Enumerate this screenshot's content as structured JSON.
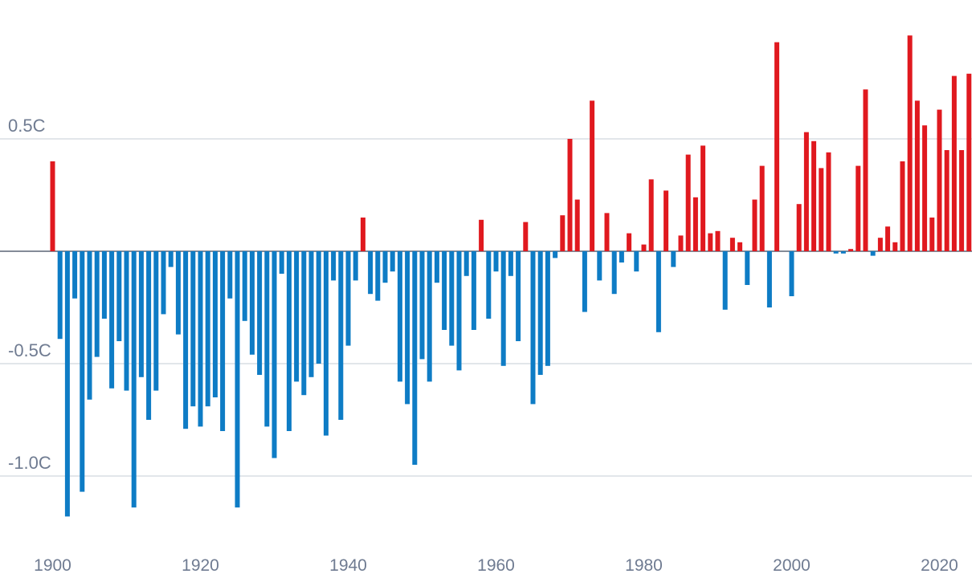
{
  "chart_data": {
    "type": "bar",
    "title": "",
    "xlabel": "",
    "ylabel": "",
    "x_range": [
      1900,
      2024
    ],
    "ylim": [
      -1.2,
      0.95
    ],
    "y_ticks": [
      {
        "value": 0.5,
        "label": "0.5C"
      },
      {
        "value": -0.5,
        "label": "-0.5C"
      },
      {
        "value": -1.0,
        "label": "-1.0C"
      }
    ],
    "x_ticks": [
      {
        "value": 1900,
        "label": "1900"
      },
      {
        "value": 1920,
        "label": "1920"
      },
      {
        "value": 1940,
        "label": "1940"
      },
      {
        "value": 1960,
        "label": "1960"
      },
      {
        "value": 1980,
        "label": "1980"
      },
      {
        "value": 2000,
        "label": "2000"
      },
      {
        "value": 2020,
        "label": "2020"
      }
    ],
    "colors": {
      "positive": "#e0191f",
      "negative": "#0e7cc5",
      "grid": "#d9dde3",
      "zero_line": "#5b6577",
      "tick_text": "#6f7b91"
    },
    "years": [
      1900,
      1901,
      1902,
      1903,
      1904,
      1905,
      1906,
      1907,
      1908,
      1909,
      1910,
      1911,
      1912,
      1913,
      1914,
      1915,
      1916,
      1917,
      1918,
      1919,
      1920,
      1921,
      1922,
      1923,
      1924,
      1925,
      1926,
      1927,
      1928,
      1929,
      1930,
      1931,
      1932,
      1933,
      1934,
      1935,
      1936,
      1937,
      1938,
      1939,
      1940,
      1941,
      1942,
      1943,
      1944,
      1945,
      1946,
      1947,
      1948,
      1949,
      1950,
      1951,
      1952,
      1953,
      1954,
      1955,
      1956,
      1957,
      1958,
      1959,
      1960,
      1961,
      1962,
      1963,
      1964,
      1965,
      1966,
      1967,
      1968,
      1969,
      1970,
      1971,
      1972,
      1973,
      1974,
      1975,
      1976,
      1977,
      1978,
      1979,
      1980,
      1981,
      1982,
      1983,
      1984,
      1985,
      1986,
      1987,
      1988,
      1989,
      1990,
      1991,
      1992,
      1993,
      1994,
      1995,
      1996,
      1997,
      1998,
      1999,
      2000,
      2001,
      2002,
      2003,
      2004,
      2005,
      2006,
      2007,
      2008,
      2009,
      2010,
      2011,
      2012,
      2013,
      2014,
      2015,
      2016,
      2017,
      2018,
      2019,
      2020,
      2021,
      2022,
      2023,
      2024
    ],
    "values": [
      0.4,
      -0.39,
      -1.18,
      -0.21,
      -1.07,
      -0.66,
      -0.47,
      -0.3,
      -0.61,
      -0.4,
      -0.62,
      -1.14,
      -0.56,
      -0.75,
      -0.62,
      -0.28,
      -0.07,
      -0.37,
      -0.79,
      -0.69,
      -0.78,
      -0.69,
      -0.65,
      -0.8,
      -0.21,
      -1.14,
      -0.31,
      -0.46,
      -0.55,
      -0.78,
      -0.92,
      -0.1,
      -0.8,
      -0.58,
      -0.64,
      -0.56,
      -0.5,
      -0.82,
      -0.13,
      -0.75,
      -0.42,
      -0.13,
      0.15,
      -0.19,
      -0.22,
      -0.14,
      -0.09,
      -0.58,
      -0.68,
      -0.95,
      -0.48,
      -0.58,
      -0.14,
      -0.35,
      -0.42,
      -0.53,
      -0.11,
      -0.35,
      0.14,
      -0.3,
      -0.09,
      -0.51,
      -0.11,
      -0.4,
      0.13,
      -0.68,
      -0.55,
      -0.51,
      -0.03,
      0.16,
      0.5,
      0.23,
      -0.27,
      0.67,
      -0.13,
      0.17,
      -0.19,
      -0.05,
      0.08,
      -0.09,
      0.03,
      0.32,
      -0.36,
      0.27,
      -0.07,
      0.07,
      0.43,
      0.24,
      0.47,
      0.08,
      0.09,
      -0.26,
      0.06,
      0.04,
      -0.15,
      0.23,
      0.38,
      -0.25,
      0.93,
      0.0,
      -0.2,
      0.21,
      0.53,
      0.49,
      0.37,
      0.44,
      -0.01,
      -0.01,
      0.01,
      0.38,
      0.72,
      -0.02,
      0.06,
      0.11,
      0.04,
      0.4,
      0.96,
      0.67,
      0.56,
      0.15,
      0.63,
      0.45,
      0.78,
      0.45,
      0.79
    ]
  }
}
